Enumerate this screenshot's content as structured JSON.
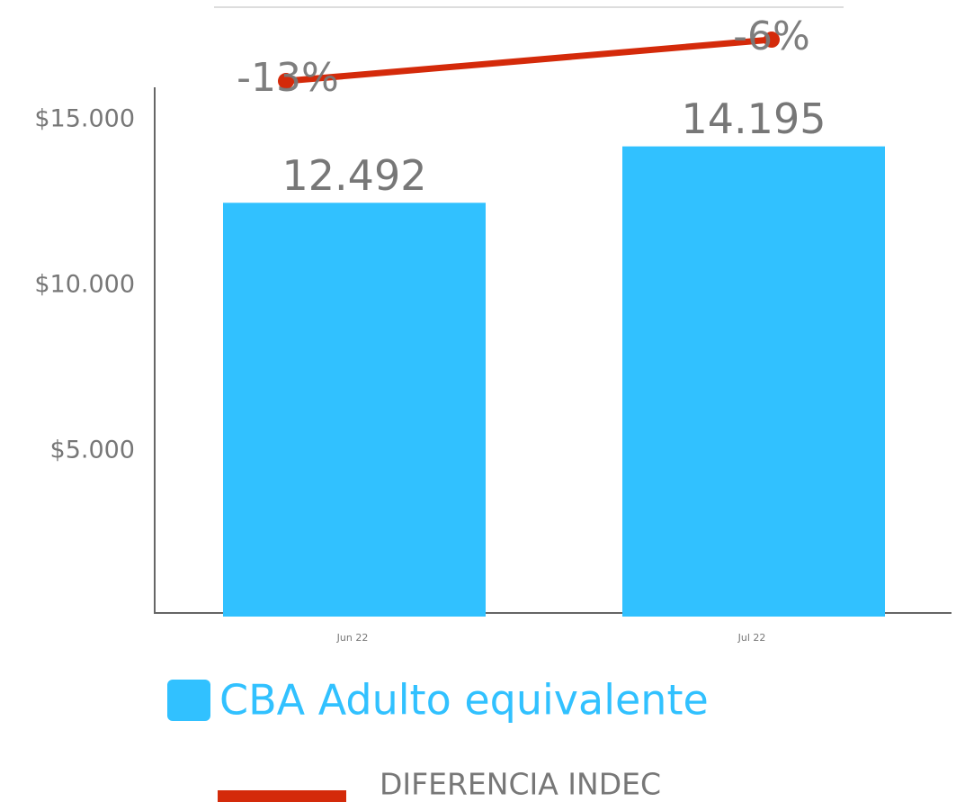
{
  "chart_data": {
    "type": "bar",
    "categories": [
      "Jun 22",
      "Jul 22"
    ],
    "series": [
      {
        "name": "CBA Adulto equivalente",
        "color": "#31c1ff",
        "values": [
          12492,
          14195
        ],
        "value_labels": [
          "12.492",
          "14.195"
        ]
      },
      {
        "name": "DIFERENCIA INDEC",
        "color": "#d42a0a",
        "type": "line",
        "axis": "y2",
        "values": [
          -13,
          -6
        ],
        "value_labels": [
          "-13%",
          "-6%"
        ]
      }
    ],
    "ylim": [
      0,
      16000
    ],
    "yticks": [
      {
        "value": 5000,
        "label": "$5.000"
      },
      {
        "value": 10000,
        "label": "$10.000"
      },
      {
        "value": 15000,
        "label": "$15.000"
      }
    ],
    "y2lim": [
      -20,
      0
    ]
  }
}
